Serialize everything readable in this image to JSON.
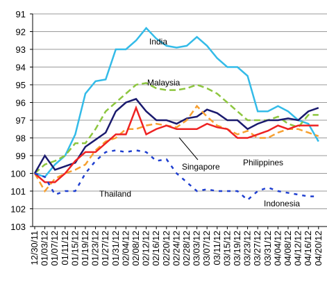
{
  "chart_data": {
    "type": "line",
    "categories": [
      "12/30/11",
      "01/03/12",
      "01/07/12",
      "01/11/12",
      "01/15/12",
      "01/19/12",
      "01/23/12",
      "01/27/12",
      "01/31/12",
      "02/04/12",
      "02/08/12",
      "02/12/12",
      "02/16/12",
      "02/20/12",
      "02/24/12",
      "02/28/12",
      "03/03/12",
      "03/07/12",
      "03/11/12",
      "03/15/12",
      "03/19/12",
      "03/23/12",
      "03/27/12",
      "03/31/12",
      "04/04/12",
      "04/08/12",
      "04/12/12",
      "04/16/12",
      "04/20/12"
    ],
    "ylim": [
      103,
      91
    ],
    "yticks": [
      91,
      92,
      93,
      94,
      95,
      96,
      97,
      98,
      99,
      100,
      101,
      102,
      103
    ],
    "grid": true,
    "series": [
      {
        "name": "India",
        "color": "#33bbe8",
        "dash": "none",
        "values": [
          100,
          100.2,
          99.5,
          99,
          97.8,
          95.5,
          94.8,
          94.7,
          93,
          93,
          92.5,
          91.8,
          92.4,
          92.8,
          92.9,
          92.8,
          92.3,
          92.8,
          93.5,
          94,
          94,
          94.5,
          96.5,
          96.5,
          96.2,
          96.5,
          97,
          97.2,
          98.2
        ]
      },
      {
        "name": "Malaysia",
        "color": "#8dc63f",
        "dash": "9,5",
        "values": [
          100,
          99.5,
          99.3,
          99,
          98.3,
          98.3,
          97.5,
          96.5,
          96,
          95.5,
          95,
          94.9,
          95.2,
          95.3,
          95.3,
          95.2,
          95,
          95.2,
          95.5,
          96,
          96.5,
          97,
          97,
          97,
          96.8,
          97.2,
          97.4,
          96.7,
          96.7
        ]
      },
      {
        "name": "Singapore",
        "color": "#1a1a6e",
        "dash": "none",
        "values": [
          100,
          99,
          99.8,
          99.6,
          99.4,
          98.5,
          98.1,
          97.7,
          96.5,
          96,
          95.8,
          96.5,
          97,
          97,
          97.2,
          96.9,
          96.8,
          96.4,
          96.6,
          97,
          97,
          97.5,
          97.2,
          97,
          97,
          96.9,
          97,
          96.5,
          96.3
        ]
      },
      {
        "name": "Philippines",
        "color": "#f7a030",
        "dash": "9,5",
        "values": [
          100,
          101,
          100.3,
          100,
          99.8,
          99.5,
          98.7,
          98.2,
          98,
          97.5,
          97.5,
          97.3,
          97.2,
          97.3,
          97.4,
          97,
          96.2,
          96.8,
          97.3,
          97.5,
          97.8,
          97.6,
          98,
          98,
          97.7,
          97.5,
          97.5,
          97.7,
          97.9
        ]
      },
      {
        "name": "Thailand",
        "color": "#ee2222",
        "dash": "none",
        "values": [
          100,
          100.5,
          100.5,
          100,
          99.3,
          98.8,
          98.8,
          98.3,
          97.8,
          97.8,
          96.3,
          97.8,
          97.5,
          97.3,
          97.5,
          97.5,
          97.5,
          97.2,
          97.4,
          97.5,
          98,
          98,
          97.8,
          97.6,
          97.3,
          97.5,
          97.3,
          97.3,
          97.3
        ]
      },
      {
        "name": "Indonesia",
        "color": "#1f3fd0",
        "dash": "5,7",
        "values": [
          100,
          100.2,
          101.2,
          101,
          101,
          100,
          99.3,
          98.8,
          98.7,
          98.8,
          98.7,
          98.8,
          99.3,
          99.2,
          100,
          100.5,
          101,
          100.9,
          101,
          101,
          101,
          101.5,
          101,
          100.8,
          101,
          101.1,
          101.2,
          101.3,
          101.3
        ]
      }
    ]
  }
}
